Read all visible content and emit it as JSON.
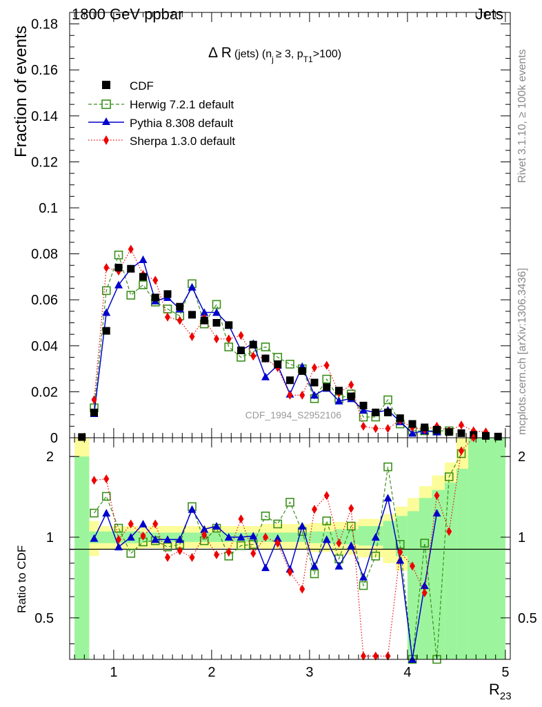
{
  "header": {
    "energy_label": "1800 GeV ppbar",
    "process_label": "Jets",
    "side_label_top": "Rivet 3.1.10, ≥ 100k events",
    "side_label_bottom": "mcplots.cern.ch [arXiv:1306.3436]",
    "analysis_id": "CDF_1994_S2952106"
  },
  "chart_data": {
    "type": "line",
    "title_main": "Δ R",
    "title_rest": "(jets) (n",
    "title_sub_j": "j",
    "title_cond": "≥ 3, p",
    "title_sub_t1": "T1",
    "title_end": ">100)",
    "xlabel": "R",
    "xlabel_sub": "23",
    "ylabel_main": "Fraction of events",
    "ylabel_ratio": "Ratio to CDF",
    "xlim": [
      0.55,
      5.05
    ],
    "ylim_main": [
      0,
      0.185
    ],
    "ylim_ratio": [
      0.35,
      2.35
    ],
    "x_ticks": [
      "1",
      "2",
      "3",
      "4",
      "5"
    ],
    "y_ticks_main": [
      "0",
      "0.02",
      "0.04",
      "0.06",
      "0.08",
      "0.1",
      "0.12",
      "0.14",
      "0.16",
      "0.18"
    ],
    "y_ticks_ratio": [
      "0.5",
      "1",
      "2"
    ],
    "colors": {
      "cdf": "#000000",
      "herwig": "#3a8f1a",
      "pythia": "#0000cc",
      "sherpa": "#ee0000",
      "band_inner": "#9cf59c",
      "band_outer": "#fcfc9a"
    },
    "x": [
      0.675,
      0.8,
      0.925,
      1.05,
      1.175,
      1.3,
      1.425,
      1.55,
      1.675,
      1.8,
      1.925,
      2.05,
      2.175,
      2.3,
      2.425,
      2.55,
      2.675,
      2.8,
      2.925,
      3.05,
      3.175,
      3.3,
      3.425,
      3.55,
      3.675,
      3.8,
      3.925,
      4.05,
      4.175,
      4.3,
      4.425,
      4.55,
      4.675,
      4.8,
      4.925
    ],
    "series": [
      {
        "name": "CDF",
        "values": [
          0.0003,
          0.011,
          0.0465,
          0.074,
          0.0735,
          0.07,
          0.061,
          0.0625,
          0.057,
          0.0535,
          0.051,
          0.05,
          0.049,
          0.038,
          0.0405,
          0.0345,
          0.032,
          0.025,
          0.029,
          0.024,
          0.022,
          0.0205,
          0.018,
          0.014,
          0.011,
          0.011,
          0.0085,
          0.006,
          0.0045,
          0.0035,
          0.0025,
          0.002,
          0.0012,
          0.0008,
          0.0005
        ]
      },
      {
        "name": "Herwig 7.2.1 default",
        "values": [
          null,
          0.013,
          0.064,
          0.0795,
          0.062,
          0.0665,
          0.059,
          0.056,
          0.053,
          0.067,
          0.0495,
          0.058,
          0.0395,
          0.035,
          0.0375,
          0.0395,
          0.035,
          0.032,
          0.03,
          0.017,
          0.0255,
          0.017,
          0.019,
          0.009,
          0.009,
          0.0165,
          0.006,
          0.003,
          0.003,
          0.003,
          0.003,
          null,
          null,
          null,
          null
        ]
      },
      {
        "name": "Pythia 8.308 default",
        "values": [
          null,
          0.0105,
          0.0545,
          0.0665,
          0.0735,
          0.0775,
          0.0595,
          0.061,
          0.056,
          0.0655,
          0.0545,
          0.0545,
          0.049,
          0.038,
          0.041,
          0.0265,
          0.0315,
          0.019,
          0.031,
          0.0185,
          0.0215,
          0.016,
          0.017,
          0.012,
          0.011,
          0.012,
          0.007,
          0.002,
          0.003,
          0.0025,
          null,
          null,
          null,
          null,
          null
        ]
      },
      {
        "name": "Sherpa 1.3.0 default",
        "values": [
          null,
          0.0165,
          0.074,
          0.0725,
          0.082,
          0.071,
          0.0685,
          0.0525,
          0.051,
          0.044,
          0.052,
          0.043,
          0.043,
          0.0445,
          0.0355,
          0.0345,
          0.0305,
          0.0185,
          0.0185,
          0.0305,
          0.0315,
          0.0195,
          0.023,
          0.005,
          0.004,
          0.004,
          0.0075,
          0.0045,
          0.0035,
          0.005,
          0.003,
          0.0055,
          0.003,
          0.0025,
          null
        ]
      }
    ],
    "ratio_series": [
      {
        "name": "Herwig 7.2.1 default",
        "values": [
          null,
          1.23,
          1.42,
          1.08,
          0.87,
          0.96,
          0.97,
          0.92,
          0.94,
          1.3,
          0.97,
          1.08,
          0.85,
          0.93,
          0.94,
          1.2,
          1.12,
          1.35,
          1.05,
          0.73,
          1.15,
          0.83,
          1.1,
          0.66,
          0.85,
          1.83,
          0.94,
          0.35,
          0.95,
          0.35,
          1.68,
          2.05,
          null,
          null,
          null
        ]
      },
      {
        "name": "Pythia 8.308 default",
        "values": [
          null,
          0.99,
          1.23,
          0.92,
          1.0,
          1.12,
          0.98,
          0.98,
          0.98,
          1.27,
          1.07,
          1.1,
          1.0,
          1.0,
          1.01,
          0.77,
          0.99,
          0.76,
          1.1,
          0.78,
          0.98,
          0.78,
          0.93,
          0.71,
          1.0,
          1.4,
          0.82,
          0.35,
          0.66,
          1.23,
          null,
          null,
          null,
          null,
          null
        ]
      },
      {
        "name": "Sherpa 1.3.0 default",
        "values": [
          null,
          1.63,
          1.65,
          0.98,
          1.12,
          1.01,
          1.12,
          0.84,
          0.89,
          0.84,
          1.02,
          0.86,
          0.88,
          1.17,
          0.87,
          1.0,
          0.95,
          0.74,
          0.64,
          1.27,
          1.43,
          0.95,
          1.28,
          0.36,
          0.36,
          0.36,
          0.88,
          0.78,
          0.62,
          1.43,
          1.05,
          2.1,
          2.35,
          null,
          null
        ]
      }
    ],
    "band_inner": [
      [
        0.6,
        0.35,
        2.0
      ],
      [
        0.75,
        0.95,
        1.05
      ],
      [
        1.3,
        0.96,
        1.04
      ],
      [
        1.8,
        0.96,
        1.04
      ],
      [
        2.5,
        0.96,
        1.04
      ],
      [
        3.0,
        0.95,
        1.05
      ],
      [
        3.25,
        0.94,
        1.07
      ],
      [
        3.5,
        0.93,
        1.1
      ],
      [
        3.75,
        0.9,
        1.15
      ],
      [
        3.88,
        0.85,
        1.2
      ],
      [
        4.0,
        0.35,
        1.25
      ],
      [
        4.12,
        0.35,
        1.4
      ],
      [
        4.25,
        0.35,
        1.5
      ],
      [
        4.38,
        0.35,
        1.6
      ],
      [
        4.5,
        0.35,
        1.8
      ],
      [
        4.62,
        0.35,
        2.35
      ]
    ],
    "band_outer": [
      [
        0.6,
        0.35,
        2.35
      ],
      [
        0.75,
        0.85,
        1.15
      ],
      [
        0.85,
        0.9,
        1.1
      ],
      [
        1.3,
        0.91,
        1.1
      ],
      [
        2.0,
        0.91,
        1.1
      ],
      [
        2.5,
        0.9,
        1.12
      ],
      [
        3.0,
        0.88,
        1.13
      ],
      [
        3.25,
        0.86,
        1.14
      ],
      [
        3.5,
        0.84,
        1.17
      ],
      [
        3.75,
        0.8,
        1.22
      ],
      [
        3.88,
        0.75,
        1.3
      ],
      [
        4.0,
        0.68,
        1.4
      ],
      [
        4.12,
        0.6,
        1.55
      ],
      [
        4.25,
        0.35,
        1.7
      ],
      [
        4.38,
        0.35,
        1.9
      ],
      [
        4.5,
        0.35,
        2.35
      ]
    ]
  }
}
